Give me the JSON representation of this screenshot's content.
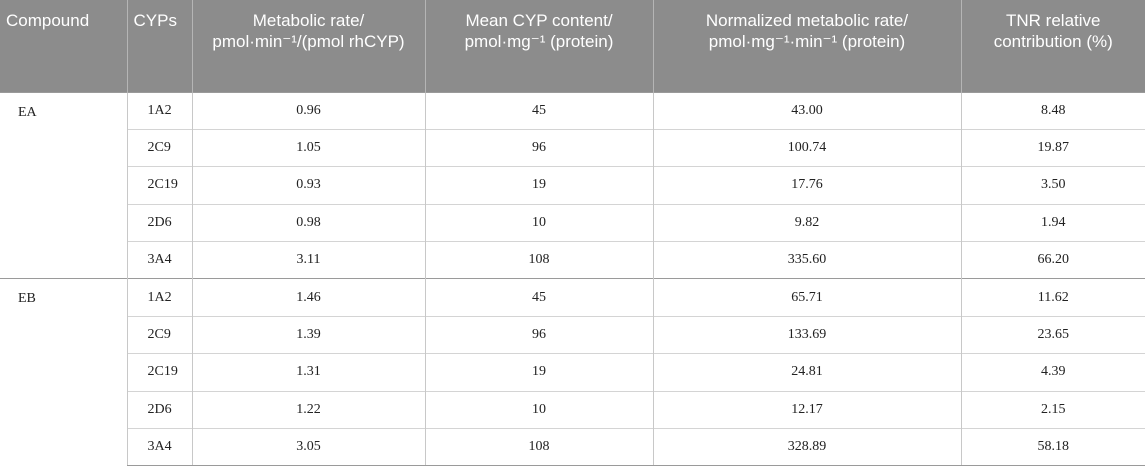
{
  "table": {
    "headers": [
      "Compound",
      "CYPs",
      "Metabolic rate/ pmol·min⁻¹/(pmol rhCYP)",
      "Mean CYP content/ pmol·mg⁻¹ (protein)",
      "Normalized metabolic rate/ pmol·mg⁻¹·min⁻¹ (protein)",
      "TNR relative contribution (%)"
    ],
    "groups": [
      {
        "compound": "EA",
        "rows": [
          [
            "1A2",
            "0.96",
            "45",
            "43.00",
            "8.48"
          ],
          [
            "2C9",
            "1.05",
            "96",
            "100.74",
            "19.87"
          ],
          [
            "2C19",
            "0.93",
            "19",
            "17.76",
            "3.50"
          ],
          [
            "2D6",
            "0.98",
            "10",
            "9.82",
            "1.94"
          ],
          [
            "3A4",
            "3.11",
            "108",
            "335.60",
            "66.20"
          ]
        ]
      },
      {
        "compound": "EB",
        "rows": [
          [
            "1A2",
            "1.46",
            "45",
            "65.71",
            "11.62"
          ],
          [
            "2C9",
            "1.39",
            "96",
            "133.69",
            "23.65"
          ],
          [
            "2C19",
            "1.31",
            "19",
            "24.81",
            "4.39"
          ],
          [
            "2D6",
            "1.22",
            "10",
            "12.17",
            "2.15"
          ],
          [
            "3A4",
            "3.05",
            "108",
            "328.89",
            "58.18"
          ]
        ]
      }
    ]
  }
}
